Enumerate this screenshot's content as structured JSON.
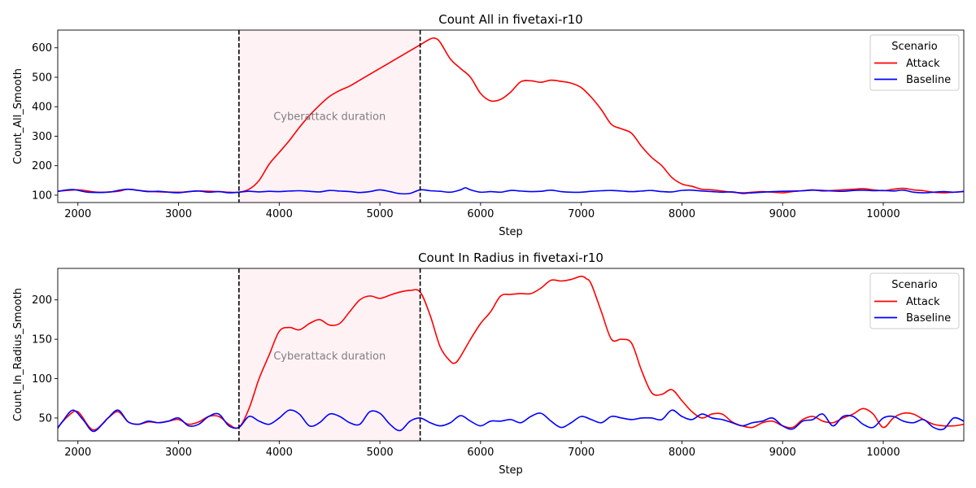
{
  "chart_data": [
    {
      "type": "line",
      "title": "Count All in fivetaxi-r10",
      "xlabel": "Step",
      "ylabel": "Count_All_Smooth",
      "xlim": [
        1800,
        10800
      ],
      "ylim": [
        75,
        660
      ],
      "xticks": [
        2000,
        3000,
        4000,
        5000,
        6000,
        7000,
        8000,
        9000,
        10000
      ],
      "yticks": [
        100,
        200,
        300,
        400,
        500,
        600
      ],
      "shaded_region": [
        3600,
        5400
      ],
      "vlines": [
        3600,
        5400
      ],
      "annotation": "Cyberattack duration",
      "annotation_pos": {
        "x": 4500,
        "y": 365
      },
      "legend": {
        "title": "Scenario",
        "location": "top-right"
      },
      "series": [
        {
          "name": "Attack",
          "color": "#ff0000",
          "x": [
            1800,
            2000,
            2200,
            2400,
            2500,
            2700,
            3000,
            3200,
            3400,
            3500,
            3600,
            3700,
            3800,
            3900,
            4000,
            4100,
            4200,
            4300,
            4400,
            4500,
            4600,
            4700,
            4800,
            4900,
            5000,
            5100,
            5200,
            5300,
            5400,
            5500,
            5550,
            5600,
            5700,
            5800,
            5900,
            6000,
            6100,
            6200,
            6300,
            6400,
            6500,
            6600,
            6700,
            6800,
            6900,
            7000,
            7100,
            7200,
            7300,
            7400,
            7500,
            7600,
            7700,
            7800,
            7900,
            8000,
            8100,
            8200,
            8300,
            8400,
            8500,
            8600,
            8700,
            8800,
            8900,
            9000,
            9100,
            9200,
            9300,
            9400,
            9500,
            9600,
            9700,
            9800,
            9900,
            10000,
            10100,
            10200,
            10300,
            10400,
            10500,
            10600,
            10700,
            10800
          ],
          "y": [
            113,
            118,
            110,
            113,
            120,
            113,
            110,
            114,
            112,
            110,
            110,
            120,
            150,
            205,
            245,
            285,
            330,
            370,
            405,
            435,
            455,
            470,
            490,
            510,
            530,
            550,
            570,
            590,
            610,
            630,
            632,
            618,
            562,
            530,
            500,
            445,
            420,
            425,
            450,
            485,
            488,
            483,
            490,
            486,
            480,
            465,
            432,
            390,
            340,
            325,
            310,
            265,
            228,
            200,
            160,
            138,
            130,
            120,
            118,
            114,
            110,
            108,
            110,
            112,
            110,
            108,
            112,
            115,
            118,
            114,
            116,
            118,
            120,
            122,
            118,
            115,
            120,
            123,
            118,
            115,
            110,
            108,
            110,
            112
          ]
        },
        {
          "name": "Baseline",
          "color": "#0000ff",
          "x": [
            1800,
            1950,
            2100,
            2300,
            2400,
            2500,
            2600,
            2700,
            2800,
            2900,
            3000,
            3100,
            3200,
            3300,
            3400,
            3500,
            3600,
            3700,
            3800,
            3900,
            4000,
            4100,
            4200,
            4300,
            4400,
            4500,
            4600,
            4700,
            4800,
            4900,
            5000,
            5100,
            5200,
            5300,
            5400,
            5500,
            5600,
            5700,
            5800,
            5850,
            5900,
            6000,
            6100,
            6200,
            6300,
            6400,
            6500,
            6600,
            6700,
            6800,
            6900,
            7000,
            7100,
            7200,
            7300,
            7400,
            7500,
            7600,
            7700,
            7800,
            7900,
            8000,
            8100,
            8200,
            8300,
            8400,
            8500,
            8600,
            8700,
            8800,
            8900,
            9000,
            9100,
            9200,
            9300,
            9400,
            9500,
            9600,
            9700,
            9800,
            9900,
            10000,
            10100,
            10200,
            10300,
            10400,
            10500,
            10600,
            10700,
            10800
          ],
          "y": [
            113,
            119,
            110,
            110,
            116,
            120,
            116,
            112,
            113,
            110,
            108,
            112,
            114,
            110,
            112,
            108,
            110,
            113,
            111,
            113,
            112,
            114,
            115,
            113,
            111,
            116,
            114,
            112,
            109,
            112,
            118,
            112,
            105,
            106,
            118,
            115,
            113,
            110,
            118,
            125,
            118,
            110,
            112,
            110,
            116,
            114,
            112,
            113,
            117,
            112,
            110,
            110,
            113,
            115,
            116,
            114,
            112,
            114,
            116,
            112,
            111,
            116,
            117,
            114,
            112,
            110,
            111,
            106,
            108,
            110,
            112,
            113,
            114,
            115,
            117,
            116,
            114,
            113,
            116,
            117,
            115,
            116,
            114,
            117,
            110,
            108,
            110,
            112,
            110,
            113
          ]
        }
      ]
    },
    {
      "type": "line",
      "title": "Count In Radius in fivetaxi-r10",
      "xlabel": "Step",
      "ylabel": "Count_In_Radius_Smooth",
      "xlim": [
        1800,
        10800
      ],
      "ylim": [
        21,
        240
      ],
      "xticks": [
        2000,
        3000,
        4000,
        5000,
        6000,
        7000,
        8000,
        9000,
        10000
      ],
      "yticks": [
        50,
        100,
        150,
        200
      ],
      "shaded_region": [
        3600,
        5400
      ],
      "vlines": [
        3600,
        5400
      ],
      "annotation": "Cyberattack duration",
      "annotation_pos": {
        "x": 4500,
        "y": 128
      },
      "legend": {
        "title": "Scenario",
        "location": "top-right"
      },
      "series": [
        {
          "name": "Attack",
          "color": "#ff0000",
          "x": [
            1800,
            1900,
            2000,
            2150,
            2300,
            2400,
            2500,
            2600,
            2700,
            2800,
            2900,
            3000,
            3100,
            3200,
            3300,
            3400,
            3500,
            3600,
            3700,
            3800,
            3900,
            4000,
            4100,
            4200,
            4300,
            4400,
            4500,
            4600,
            4700,
            4800,
            4900,
            5000,
            5100,
            5200,
            5300,
            5400,
            5500,
            5600,
            5700,
            5750,
            5800,
            5900,
            6000,
            6100,
            6200,
            6300,
            6400,
            6500,
            6600,
            6700,
            6800,
            6900,
            7000,
            7050,
            7100,
            7200,
            7300,
            7400,
            7500,
            7600,
            7700,
            7800,
            7900,
            8000,
            8100,
            8200,
            8300,
            8400,
            8500,
            8600,
            8700,
            8800,
            8900,
            9000,
            9100,
            9200,
            9300,
            9400,
            9500,
            9600,
            9700,
            9800,
            9900,
            10000,
            10100,
            10200,
            10300,
            10400,
            10500,
            10600,
            10700,
            10800
          ],
          "y": [
            38,
            52,
            58,
            35,
            50,
            58,
            45,
            42,
            45,
            44,
            46,
            48,
            42,
            45,
            52,
            52,
            42,
            38,
            62,
            100,
            130,
            160,
            165,
            162,
            170,
            175,
            168,
            170,
            185,
            200,
            205,
            202,
            206,
            210,
            212,
            210,
            180,
            140,
            122,
            120,
            128,
            150,
            170,
            185,
            205,
            207,
            208,
            208,
            215,
            225,
            224,
            226,
            230,
            227,
            220,
            185,
            150,
            150,
            145,
            110,
            82,
            80,
            86,
            72,
            58,
            50,
            55,
            55,
            45,
            40,
            38,
            44,
            46,
            40,
            38,
            48,
            52,
            46,
            44,
            50,
            55,
            62,
            55,
            38,
            50,
            56,
            55,
            48,
            42,
            40,
            40,
            42
          ]
        },
        {
          "name": "Baseline",
          "color": "#0000ff",
          "x": [
            1800,
            1850,
            1950,
            2050,
            2150,
            2250,
            2300,
            2400,
            2500,
            2600,
            2700,
            2800,
            2900,
            3000,
            3100,
            3200,
            3300,
            3400,
            3500,
            3600,
            3700,
            3800,
            3900,
            4000,
            4100,
            4200,
            4300,
            4400,
            4500,
            4600,
            4700,
            4800,
            4900,
            5000,
            5100,
            5200,
            5300,
            5400,
            5500,
            5600,
            5700,
            5800,
            5900,
            6000,
            6100,
            6200,
            6300,
            6400,
            6500,
            6600,
            6700,
            6800,
            6900,
            7000,
            7100,
            7200,
            7300,
            7400,
            7500,
            7600,
            7700,
            7800,
            7900,
            8000,
            8100,
            8200,
            8300,
            8400,
            8500,
            8600,
            8700,
            8800,
            8900,
            9000,
            9100,
            9200,
            9300,
            9400,
            9500,
            9600,
            9700,
            9800,
            9900,
            10000,
            10100,
            10200,
            10300,
            10400,
            10500,
            10600,
            10700,
            10800
          ],
          "y": [
            37,
            46,
            60,
            48,
            33,
            43,
            50,
            60,
            45,
            42,
            46,
            44,
            46,
            50,
            40,
            42,
            52,
            55,
            40,
            38,
            52,
            46,
            42,
            50,
            60,
            55,
            40,
            44,
            55,
            52,
            44,
            42,
            58,
            56,
            42,
            34,
            46,
            50,
            44,
            40,
            44,
            53,
            46,
            40,
            46,
            46,
            48,
            44,
            52,
            56,
            46,
            38,
            44,
            52,
            48,
            44,
            52,
            50,
            48,
            50,
            50,
            48,
            60,
            52,
            48,
            55,
            50,
            48,
            44,
            40,
            44,
            46,
            50,
            40,
            36,
            46,
            48,
            55,
            40,
            52,
            52,
            42,
            38,
            50,
            52,
            46,
            44,
            48,
            38,
            36,
            50,
            46
          ]
        }
      ]
    }
  ]
}
